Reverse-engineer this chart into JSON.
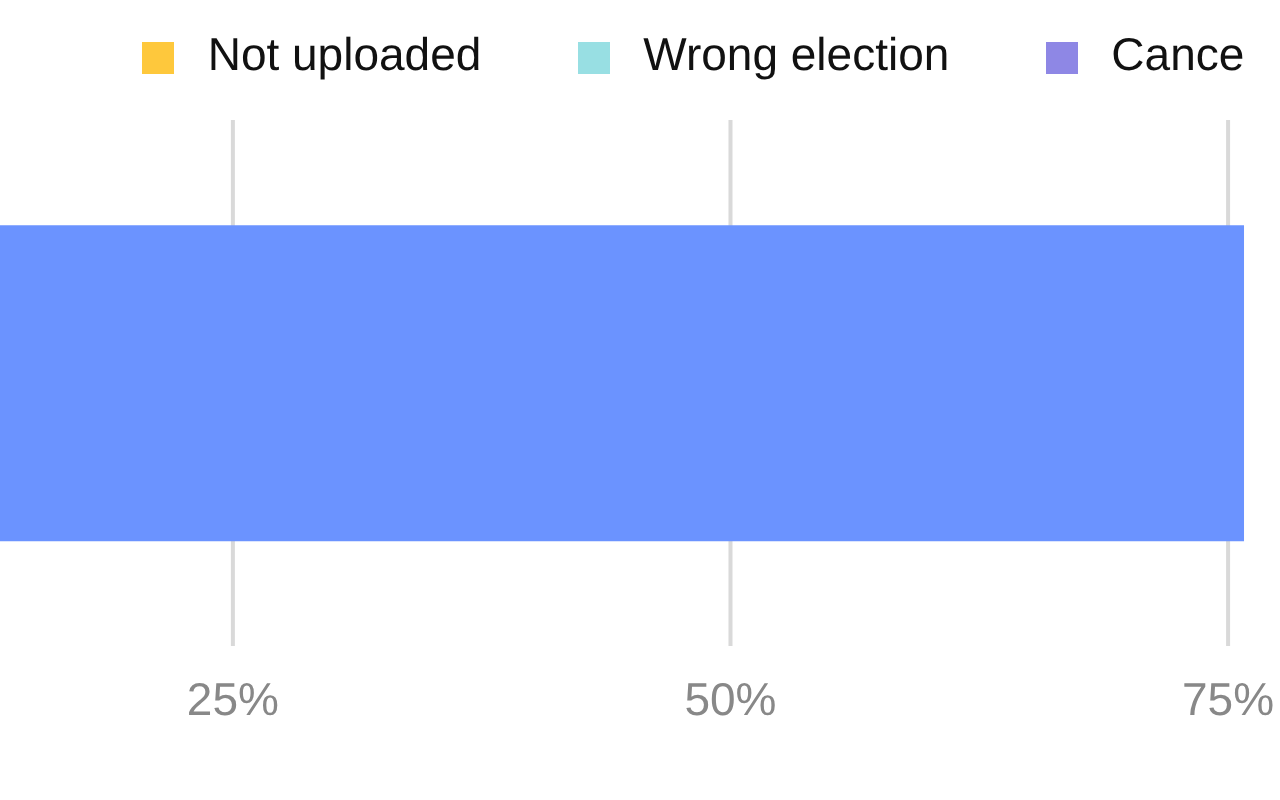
{
  "chart_data": {
    "type": "bar",
    "orientation": "horizontal",
    "stacked": true,
    "categories": [
      null
    ],
    "series": [
      {
        "color": "#6b93ff",
        "values": [
          75.8
        ]
      },
      {
        "name": "Not uploaded",
        "color": "#fec83c",
        "values": [
          null
        ]
      },
      {
        "name": "Wrong election",
        "color": "#98dfe3",
        "values": [
          null
        ]
      },
      {
        "name": "Cance",
        "color": "#8e87e5",
        "values": [
          null
        ]
      }
    ],
    "xlim": [
      13.3,
      76
    ],
    "xticks": [
      {
        "value": 25,
        "label": "25%"
      },
      {
        "value": 50,
        "label": "50%"
      },
      {
        "value": 75,
        "label": "75%"
      }
    ],
    "grid": "x",
    "legend": "top",
    "tick_labels": "x"
  }
}
